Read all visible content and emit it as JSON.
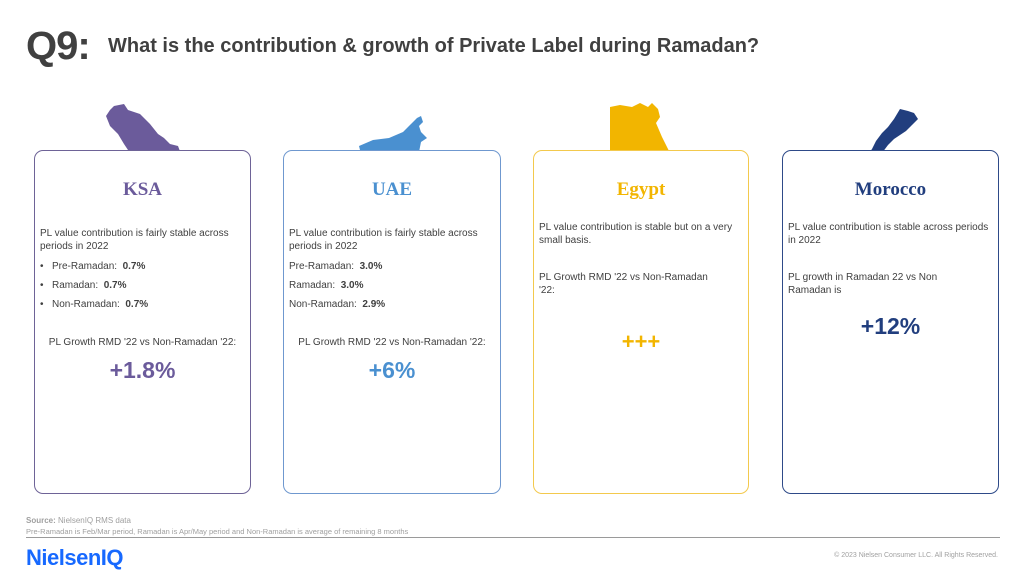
{
  "header": {
    "q_number": "Q9:",
    "title": "What is the contribution & growth of Private Label during Ramadan?"
  },
  "cards": {
    "ksa": {
      "name": "KSA",
      "color": "#6b5b9b",
      "map_icon": "saudi-arabia-map",
      "desc": "PL value contribution is fairly stable across periods in 2022",
      "periods": [
        {
          "label": "Pre-Ramadan:",
          "value": "0.7%"
        },
        {
          "label": "Ramadan:",
          "value": "0.7%"
        },
        {
          "label": "Non-Ramadan:",
          "value": "0.7%"
        }
      ],
      "growth_label": "PL Growth RMD '22 vs Non-Ramadan '22:",
      "growth_value": "+1.8%"
    },
    "uae": {
      "name": "UAE",
      "color": "#4a90d0",
      "map_icon": "uae-map",
      "desc": "PL value contribution is fairly stable across periods in 2022",
      "periods": [
        {
          "label": "Pre-Ramadan:",
          "value": "3.0%"
        },
        {
          "label": "Ramadan:",
          "value": "3.0%"
        },
        {
          "label": "Non-Ramadan:",
          "value": "2.9%"
        }
      ],
      "growth_label": "PL Growth RMD '22 vs Non-Ramadan '22:",
      "growth_value": "+6%"
    },
    "egypt": {
      "name": "Egypt",
      "color": "#f2b500",
      "map_icon": "egypt-map",
      "desc": "PL value contribution is stable but on a very small basis.",
      "growth_label": "PL Growth RMD '22 vs Non-Ramadan '22:",
      "growth_value": "+++"
    },
    "morocco": {
      "name": "Morocco",
      "color": "#213e7e",
      "map_icon": "morocco-map",
      "desc": "PL value contribution is stable across periods in 2022",
      "growth_label": "PL growth in Ramadan 22 vs Non Ramadan is",
      "growth_value": "+12%"
    }
  },
  "footer": {
    "source_label": "Source:",
    "source_text": "NielsenIQ RMS data",
    "note": "Pre-Ramadan is Feb/Mar period, Ramadan is Apr/May period and Non-Ramadan is average of remaining 8 months",
    "logo": "NielsenIQ",
    "copyright": "© 2023 Nielsen Consumer LLC. All Rights Reserved."
  }
}
